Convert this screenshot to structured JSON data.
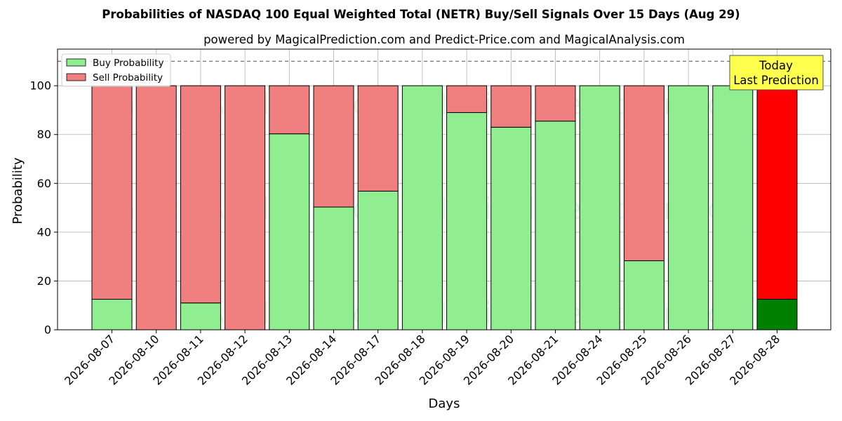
{
  "chart_data": {
    "type": "bar",
    "stacked": true,
    "title": "Probabilities of NASDAQ 100 Equal Weighted Total (NETR) Buy/Sell Signals Over 15 Days (Aug 29)",
    "subtitle": "powered by MagicalPrediction.com and Predict-Price.com and MagicalAnalysis.com",
    "xlabel": "Days",
    "ylabel": "Probability",
    "ylim": [
      0,
      115
    ],
    "yticks": [
      0,
      20,
      40,
      60,
      80,
      100
    ],
    "reference_line": 110,
    "grid": true,
    "legend_position": "top-left",
    "categories": [
      "2026-08-07",
      "2026-08-10",
      "2026-08-11",
      "2026-08-12",
      "2026-08-13",
      "2026-08-14",
      "2026-08-17",
      "2026-08-18",
      "2026-08-19",
      "2026-08-20",
      "2026-08-21",
      "2026-08-24",
      "2026-08-25",
      "2026-08-26",
      "2026-08-27",
      "2026-08-28"
    ],
    "series": [
      {
        "name": "Buy Probability",
        "color": "#90ee90",
        "values": [
          12.5,
          0,
          11,
          0,
          80.3,
          50.3,
          56.8,
          100,
          89,
          83,
          85.5,
          100,
          28.3,
          100,
          100,
          12.5
        ]
      },
      {
        "name": "Sell Probability",
        "color": "#f08080",
        "values": [
          87.5,
          100,
          89,
          100,
          19.7,
          49.7,
          43.2,
          0,
          11,
          17,
          14.5,
          0,
          71.7,
          0,
          0,
          87.5
        ]
      }
    ],
    "highlight": {
      "index": 15,
      "buy_color": "#008000",
      "sell_color": "#ff0000"
    },
    "annotation": {
      "lines": [
        "Today",
        "Last Prediction"
      ],
      "background": "#ffff4d"
    },
    "watermarks": [
      "MagicalAnalysis.com",
      "MagicalPrediction.com"
    ]
  }
}
